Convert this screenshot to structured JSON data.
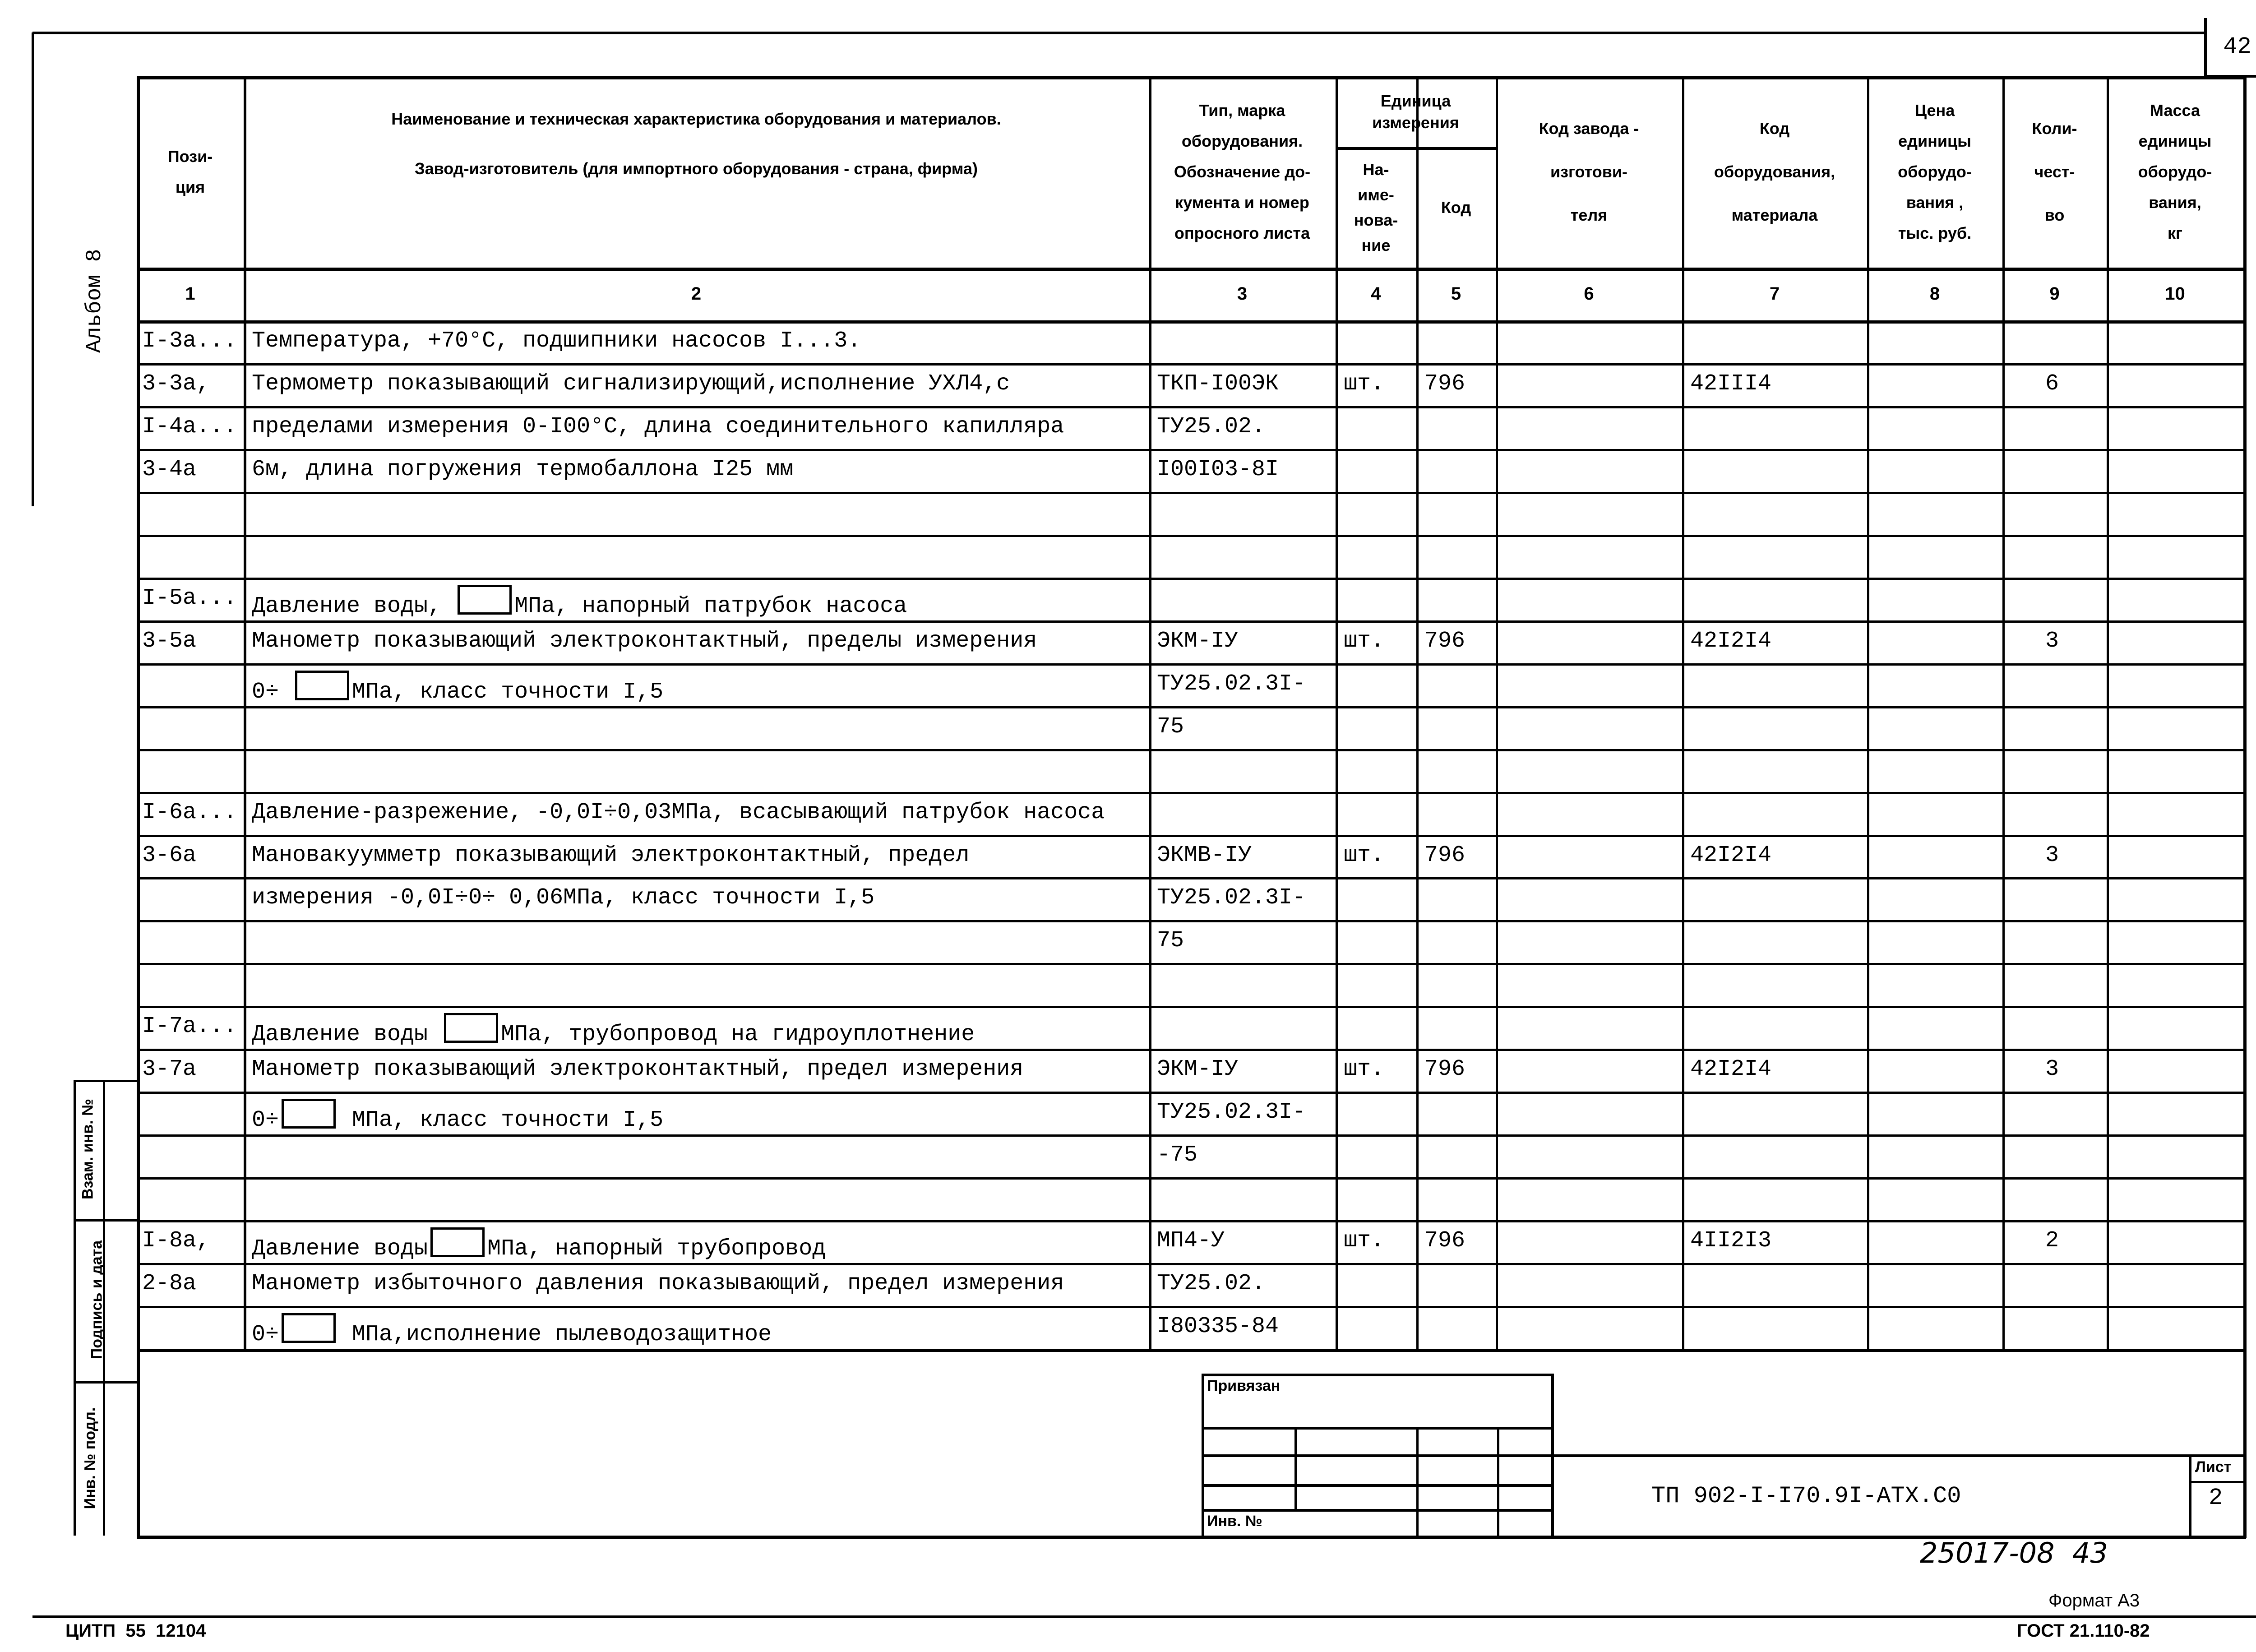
{
  "page_number": "42",
  "album_label": "Альбом 8",
  "header": {
    "col1": [
      "Пози-",
      "ция"
    ],
    "col2": [
      "Наименование и техническая характеристика  оборудования и материалов.",
      "Завод-изготовитель  (для импортного оборудования -  страна, фирма)"
    ],
    "col3": [
      "Тип,    марка",
      "оборудования.",
      "Обозначение  до-",
      "кумента  и  номер",
      "опросного листа"
    ],
    "unit_group": [
      "Единица",
      "измерения"
    ],
    "col4": [
      "На-",
      "име-",
      "нова-",
      "ние"
    ],
    "col5": [
      "Код"
    ],
    "col6": [
      "Код  завода -",
      "изготови-",
      "теля"
    ],
    "col7": [
      "Код",
      "оборудования,",
      "материала"
    ],
    "col8": [
      "Цена",
      "единицы",
      "оборудо-",
      "вания ,",
      "тыс. руб."
    ],
    "col9": [
      "Коли-",
      "чест-",
      "во"
    ],
    "col10": [
      "Масса",
      "единицы",
      "оборудо-",
      "вания,",
      "кг"
    ],
    "numbers": [
      "1",
      "2",
      "3",
      "4",
      "5",
      "6",
      "7",
      "8",
      "9",
      "10"
    ]
  },
  "rows": [
    {
      "pos": "I-3а...",
      "name": "Температура, +70°С, подшипники насосов I...3.",
      "type": "",
      "unit": "",
      "unit_code": "",
      "eq_code": "",
      "qty": ""
    },
    {
      "pos": "3-3а,",
      "name": "Термометр показывающий сигнализирующий,исполнение УХЛ4,с",
      "type": "ТКП-I00ЭК",
      "unit": "шт.",
      "unit_code": "796",
      "eq_code": "42III4",
      "qty": "6"
    },
    {
      "pos": "I-4а...",
      "name": "пределами измерения 0-I00°С, длина соединительного капилляра",
      "type": "ТУ25.02.",
      "unit": "",
      "unit_code": "",
      "eq_code": "",
      "qty": ""
    },
    {
      "pos": "3-4а",
      "name": "6м, длина погружения термобаллона I25 мм",
      "type": "I00I03-8I",
      "unit": "",
      "unit_code": "",
      "eq_code": "",
      "qty": ""
    },
    {
      "pos": "",
      "name": "",
      "type": "",
      "unit": "",
      "unit_code": "",
      "eq_code": "",
      "qty": ""
    },
    {
      "pos": "",
      "name": "",
      "type": "",
      "unit": "",
      "unit_code": "",
      "eq_code": "",
      "qty": ""
    },
    {
      "pos": "I-5а...",
      "name": "Давление воды,   □МПа, напорный патрубок насоса",
      "type": "",
      "unit": "",
      "unit_code": "",
      "eq_code": "",
      "qty": ""
    },
    {
      "pos": "3-5а",
      "name": "Манометр показывающий электроконтактный, пределы измерения",
      "type": "ЭКМ-IУ",
      "unit": "шт.",
      "unit_code": "796",
      "eq_code": "42I2I4",
      "qty": "3"
    },
    {
      "pos": "",
      "name": "0÷  □МПа, класс точности I,5",
      "type": "ТУ25.02.3I-",
      "unit": "",
      "unit_code": "",
      "eq_code": "",
      "qty": ""
    },
    {
      "pos": "",
      "name": "",
      "type": "75",
      "unit": "",
      "unit_code": "",
      "eq_code": "",
      "qty": ""
    },
    {
      "pos": "",
      "name": "",
      "type": "",
      "unit": "",
      "unit_code": "",
      "eq_code": "",
      "qty": ""
    },
    {
      "pos": "I-6а...",
      "name": "Давление-разрежение, -0,0I÷0,03МПа, всасывающий патрубок насоса",
      "type": "",
      "unit": "",
      "unit_code": "",
      "eq_code": "",
      "qty": ""
    },
    {
      "pos": "3-6а",
      "name": "Мановакуумметр показывающий электроконтактный, предел",
      "type": "ЭКМВ-IУ",
      "unit": "шт.",
      "unit_code": "796",
      "eq_code": "42I2I4",
      "qty": "3"
    },
    {
      "pos": "",
      "name": "измерения -0,0I÷0÷ 0,06МПа, класс точности I,5",
      "type": "ТУ25.02.3I-",
      "unit": "",
      "unit_code": "",
      "eq_code": "",
      "qty": ""
    },
    {
      "pos": "",
      "name": "",
      "type": "75",
      "unit": "",
      "unit_code": "",
      "eq_code": "",
      "qty": ""
    },
    {
      "pos": "",
      "name": "",
      "type": "",
      "unit": "",
      "unit_code": "",
      "eq_code": "",
      "qty": ""
    },
    {
      "pos": "I-7а...",
      "name": "Давление воды □МПа, трубопровод на гидроуплотнение",
      "type": "",
      "unit": "",
      "unit_code": "",
      "eq_code": "",
      "qty": ""
    },
    {
      "pos": "3-7а",
      "name": "Манометр показывающий электроконтактный, предел измерения",
      "type": "ЭКМ-IУ",
      "unit": "шт.",
      "unit_code": "796",
      "eq_code": "42I2I4",
      "qty": "3"
    },
    {
      "pos": "",
      "name": "0÷□ МПа, класс точности I,5",
      "type": "ТУ25.02.3I-",
      "unit": "",
      "unit_code": "",
      "eq_code": "",
      "qty": ""
    },
    {
      "pos": "",
      "name": "",
      "type": "-75",
      "unit": "",
      "unit_code": "",
      "eq_code": "",
      "qty": ""
    },
    {
      "pos": "",
      "name": "",
      "type": "",
      "unit": "",
      "unit_code": "",
      "eq_code": "",
      "qty": ""
    },
    {
      "pos": "I-8а,",
      "name": "Давление воды□МПа, напорный трубопровод",
      "type": "МП4-У",
      "unit": "шт.",
      "unit_code": "796",
      "eq_code": "4II2I3",
      "qty": "2"
    },
    {
      "pos": "2-8а",
      "name": "Манометр избыточного давления показывающий, предел измерения",
      "type": "ТУ25.02.",
      "unit": "",
      "unit_code": "",
      "eq_code": "",
      "qty": ""
    },
    {
      "pos": "",
      "name": "0÷□ МПа,исполнение пылеводозащитное",
      "type": "I80335-84",
      "unit": "",
      "unit_code": "",
      "eq_code": "",
      "qty": ""
    }
  ],
  "side_stamp": {
    "replaced_inv": "Взам. инв. №",
    "signature_date": "Подпись и дата",
    "original_inv": "Инв. № подл."
  },
  "title_block": {
    "linked_label": "Привязан",
    "inv_label": "Инв. №",
    "document_code": "ТП 902-I-I70.9I-АТХ.С0",
    "sheet_label": "Лист",
    "sheet_number": "2"
  },
  "footer": {
    "handwritten_number": "25017-08  43",
    "format": "Формат А3",
    "publisher": "ЦИТП  55  12104",
    "standard": "ГОСТ 21.110-82"
  }
}
